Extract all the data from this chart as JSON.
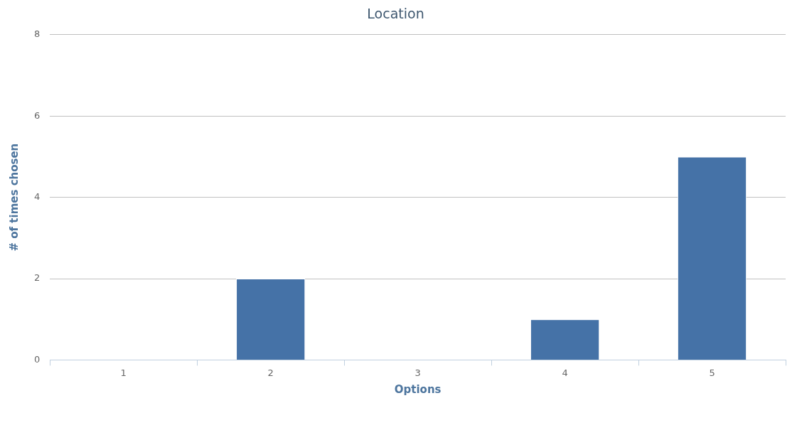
{
  "chart_data": {
    "type": "bar",
    "title": "Location",
    "xlabel": "Options",
    "ylabel": "# of times chosen",
    "categories": [
      "1",
      "2",
      "3",
      "4",
      "5"
    ],
    "values": [
      0,
      2,
      0,
      1,
      5
    ],
    "color": "#4572a7",
    "ylim": [
      0,
      8
    ],
    "yticks": [
      0,
      2,
      4,
      6,
      8
    ],
    "grid": "y",
    "legend": false
  }
}
